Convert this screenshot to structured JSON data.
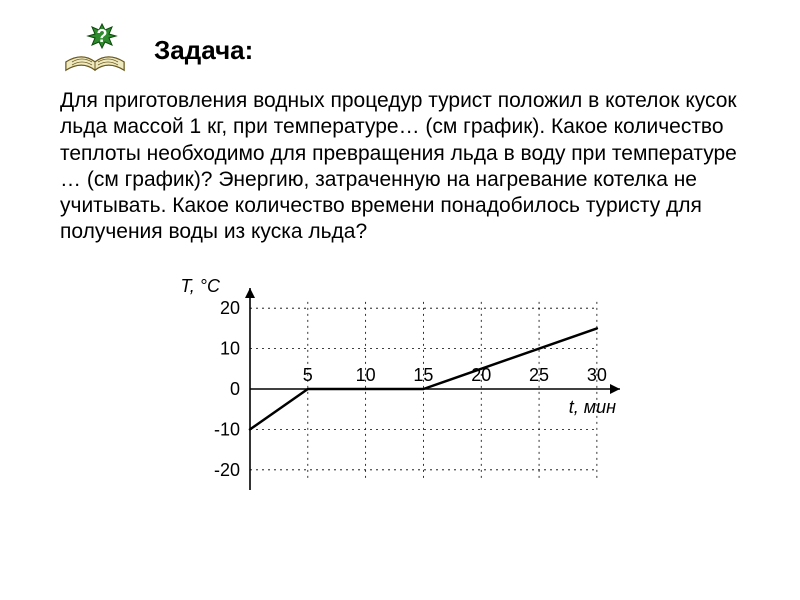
{
  "header": {
    "title": "Задача:",
    "icon_name": "question-book-icon"
  },
  "body": {
    "paragraph": "Для приготовления водных процедур турист положил в котелок кусок льда массой 1 кг, при температуре… (см график). Какое количество теплоты необходимо для превращения льда в воду при температуре …  (см график)? Энергию, затраченную на нагревание котелка не учитывать. Какое количество времени понадобилось туристу для получения воды из куска льда?"
  },
  "chart": {
    "type": "line",
    "y_axis_label": "T, °C",
    "x_axis_label": "t, мин",
    "y_ticks": [
      -20,
      -10,
      0,
      10,
      20
    ],
    "x_ticks": [
      5,
      10,
      15,
      20,
      25,
      30
    ],
    "xlim": [
      0,
      32
    ],
    "ylim": [
      -25,
      25
    ],
    "points": [
      {
        "x": 0,
        "y": -10
      },
      {
        "x": 5,
        "y": 0
      },
      {
        "x": 15,
        "y": 0
      },
      {
        "x": 30,
        "y": 15
      }
    ],
    "line_color": "#000000",
    "line_width": 2.5,
    "grid_color": "#000000",
    "grid_dash": "2 4",
    "grid_width": 0.8,
    "background_color": "#ffffff",
    "tick_fontsize": 18,
    "label_fontsize": 18
  }
}
